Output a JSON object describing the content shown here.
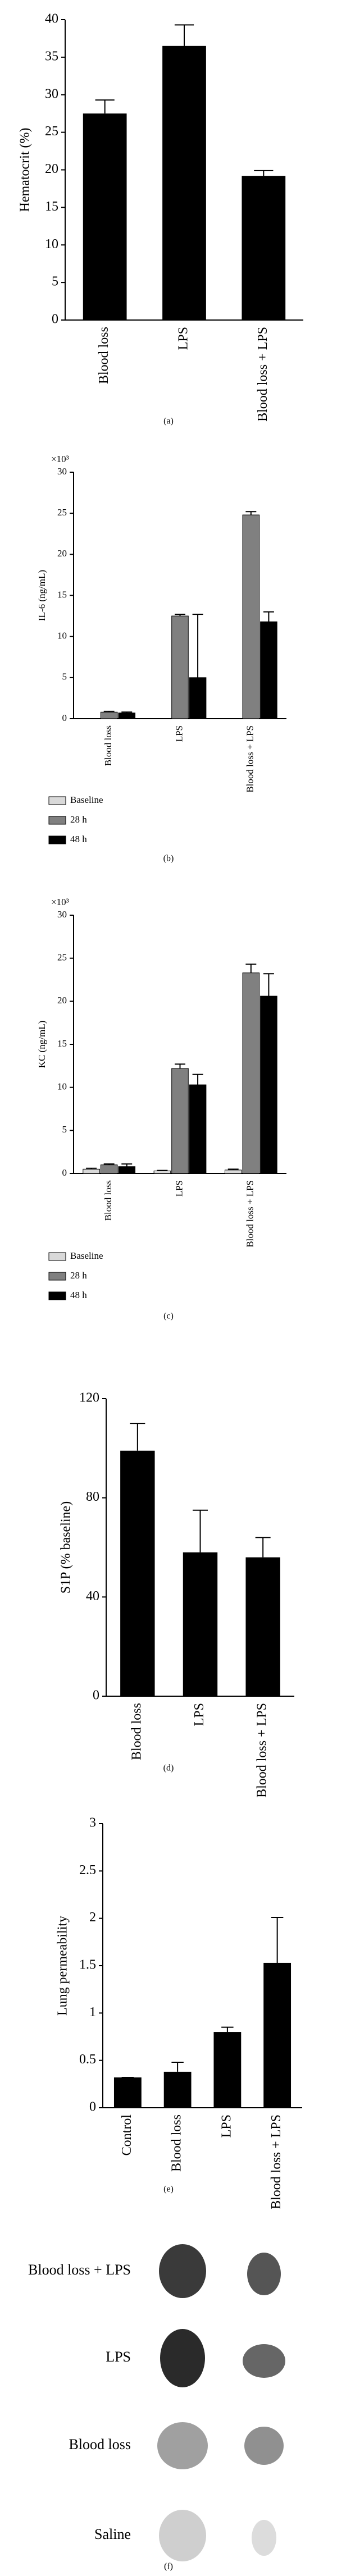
{
  "chart_data": [
    {
      "type": "bar",
      "caption": "(a)",
      "y_label": "Hematocrit (%)",
      "categories": [
        "Blood loss",
        "LPS",
        "Blood loss + LPS"
      ],
      "values": [
        27.5,
        36.5,
        19.2
      ],
      "errors": [
        1.8,
        2.8,
        0.7
      ],
      "color": "#000000",
      "ylim": [
        0,
        40
      ],
      "yticks": [
        0,
        5,
        10,
        15,
        20,
        25,
        30,
        35,
        40
      ]
    },
    {
      "type": "grouped_bar",
      "caption": "(b)",
      "y_label": "IL-6 (ng/mL)",
      "y_multiplier": "×10³",
      "categories": [
        "Blood loss",
        "LPS",
        "Blood loss + LPS"
      ],
      "series": [
        {
          "name": "Baseline",
          "color": "#d9d9d9",
          "values": [
            null,
            null,
            null
          ],
          "errors": [
            null,
            null,
            null
          ]
        },
        {
          "name": "28 h",
          "color": "#808080",
          "values": [
            0.8,
            12.5,
            24.8
          ],
          "errors": [
            0.1,
            0.2,
            0.4
          ]
        },
        {
          "name": "48 h",
          "color": "#000000",
          "values": [
            0.7,
            5.0,
            11.8
          ],
          "errors": [
            0.1,
            7.7,
            1.2
          ]
        }
      ],
      "ylim": [
        0,
        30
      ],
      "yticks": [
        0,
        5,
        10,
        15,
        20,
        25,
        30
      ]
    },
    {
      "type": "grouped_bar",
      "caption": "(c)",
      "y_label": "KC (ng/mL)",
      "y_multiplier": "×10³",
      "categories": [
        "Blood loss",
        "LPS",
        "Blood loss + LPS"
      ],
      "series": [
        {
          "name": "Baseline",
          "color": "#d9d9d9",
          "values": [
            0.5,
            0.3,
            0.4
          ],
          "errors": [
            0.1,
            0.05,
            0.1
          ]
        },
        {
          "name": "28 h",
          "color": "#808080",
          "values": [
            1.0,
            12.2,
            23.3
          ],
          "errors": [
            0.1,
            0.5,
            1.0
          ]
        },
        {
          "name": "48 h",
          "color": "#000000",
          "values": [
            0.8,
            10.3,
            20.6
          ],
          "errors": [
            0.3,
            1.2,
            2.6
          ]
        }
      ],
      "ylim": [
        0,
        30
      ],
      "yticks": [
        0,
        5,
        10,
        15,
        20,
        25,
        30
      ]
    },
    {
      "type": "bar",
      "caption": "(d)",
      "y_label": "S1P (% baseline)",
      "categories": [
        "Blood loss",
        "LPS",
        "Blood loss + LPS"
      ],
      "values": [
        99,
        58,
        56
      ],
      "errors": [
        11,
        17,
        8
      ],
      "color": "#000000",
      "ylim": [
        0,
        120
      ],
      "yticks": [
        0,
        40,
        80,
        120
      ]
    },
    {
      "type": "bar",
      "caption": "(e)",
      "y_label": "Lung permeability",
      "categories": [
        "Control",
        "Blood loss",
        "LPS",
        "Blood loss + LPS"
      ],
      "values": [
        0.32,
        0.38,
        0.8,
        1.53
      ],
      "errors": [
        0,
        0.1,
        0.05,
        0.48
      ],
      "color": "#000000",
      "ylim": [
        0,
        3
      ],
      "yticks": [
        0,
        0.5,
        1,
        1.5,
        2,
        2.5,
        3
      ]
    }
  ],
  "image_panel": {
    "labels": [
      "Blood loss + LPS",
      "LPS",
      "Blood loss",
      "Saline"
    ],
    "caption": "(f)"
  }
}
